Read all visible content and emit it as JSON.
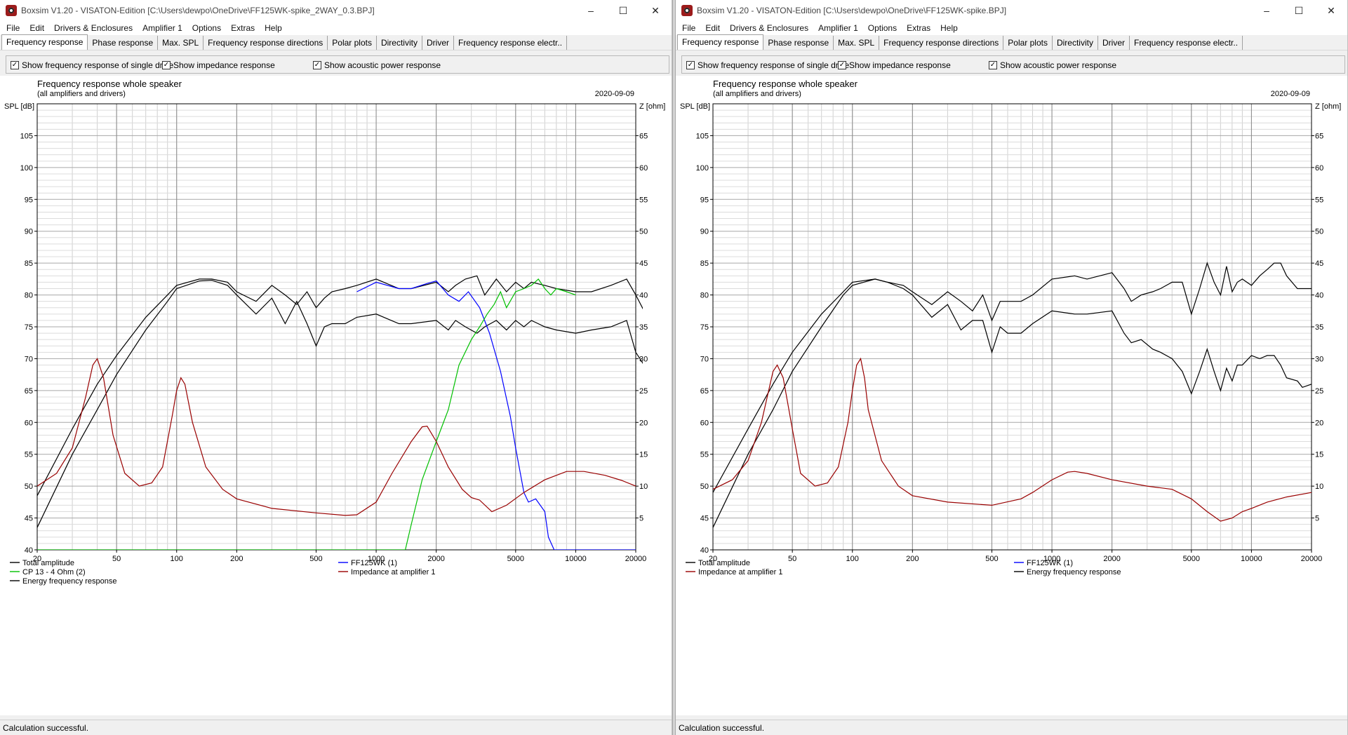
{
  "left": {
    "title": "Boxsim V1.20 - VISATON-Edition [C:\\Users\\dewpo\\OneDrive\\FF125WK-spike_2WAY_0.3.BPJ]",
    "menu": [
      "File",
      "Edit",
      "Drivers & Enclosures",
      "Amplifier 1",
      "Options",
      "Extras",
      "Help"
    ],
    "tabs": [
      "Frequency response",
      "Phase response",
      "Max. SPL",
      "Frequency response directions",
      "Polar plots",
      "Directivity",
      "Driver",
      "Frequency response electr.."
    ],
    "options": [
      "Show frequency response of single drive",
      "Show impedance response",
      "Show acoustic power response"
    ],
    "status": "Calculation successful.",
    "chart_data": {
      "type": "line",
      "title": "Frequency response whole speaker",
      "subtitle": "(all amplifiers and drivers)",
      "date": "2020-09-09",
      "ylabel": "SPL [dB]",
      "y2label": "Z [ohm]",
      "xscale": "log",
      "xlim": [
        20,
        20000
      ],
      "ylim": [
        40,
        110
      ],
      "y2lim": [
        0,
        70
      ],
      "xticks": [
        20,
        50,
        100,
        200,
        500,
        1000,
        2000,
        5000,
        10000,
        20000
      ],
      "xtick_labels": [
        "20",
        "50",
        "100",
        "200",
        "500",
        "1000",
        "2000",
        "5000",
        "10000",
        "20000"
      ],
      "yticks": [
        40,
        45,
        50,
        55,
        60,
        65,
        70,
        75,
        80,
        85,
        90,
        95,
        100,
        105
      ],
      "y2ticks": [
        5,
        10,
        15,
        20,
        25,
        30,
        35,
        40,
        45,
        50,
        55,
        60,
        65
      ],
      "legend": [
        {
          "label": "Total amplitude",
          "color": "#000000"
        },
        {
          "label": "FF125WK (1)",
          "color": "#0000ff"
        },
        {
          "label": "CP 13 - 4 Ohm (2)",
          "color": "#00c000"
        },
        {
          "label": "Impedance at amplifier 1",
          "color": "#990000"
        },
        {
          "label": "Energy frequency response",
          "color": "#000000"
        }
      ],
      "series": [
        {
          "name": "Total amplitude",
          "axis": "spl",
          "color": "#000000",
          "x": [
            20,
            30,
            40,
            50,
            70,
            90,
            100,
            130,
            150,
            180,
            200,
            250,
            300,
            350,
            400,
            450,
            500,
            550,
            600,
            700,
            800,
            1000,
            1300,
            1500,
            2000,
            2300,
            2500,
            2800,
            3200,
            3500,
            4000,
            4500,
            5000,
            5500,
            6000,
            7000,
            8000,
            10000,
            12000,
            15000,
            18000,
            20000,
            22000
          ],
          "y": [
            48.5,
            59,
            66,
            70.5,
            76.5,
            80,
            81.5,
            82.5,
            82.5,
            82,
            80.5,
            79,
            81.5,
            80,
            78.5,
            80.5,
            78,
            79.5,
            80.5,
            81,
            81.5,
            82.5,
            81,
            81,
            82,
            80.5,
            81.5,
            82.5,
            83,
            80,
            82.5,
            80.5,
            82,
            81,
            82,
            81.5,
            81,
            80.5,
            80.5,
            81.5,
            82.5,
            80,
            77.5
          ]
        },
        {
          "name": "Energy frequency response",
          "axis": "spl",
          "color": "#000000",
          "x": [
            20,
            30,
            40,
            50,
            70,
            90,
            100,
            130,
            150,
            180,
            200,
            250,
            300,
            350,
            400,
            450,
            500,
            550,
            600,
            700,
            800,
            1000,
            1300,
            1500,
            2000,
            2300,
            2500,
            2800,
            3200,
            3500,
            4000,
            4500,
            5000,
            5500,
            6000,
            7000,
            8000,
            10000,
            12000,
            15000,
            18000,
            20000,
            22000
          ],
          "y": [
            43.5,
            55,
            62,
            67.5,
            74.5,
            79,
            81,
            82.2,
            82.3,
            81.5,
            80,
            77,
            79.5,
            75.5,
            79,
            75.5,
            72,
            75,
            75.5,
            75.5,
            76.5,
            77,
            75.5,
            75.5,
            76,
            74.5,
            76,
            75,
            74,
            75,
            76,
            74.5,
            76,
            75,
            76,
            75,
            74.5,
            74,
            74.5,
            75,
            76,
            71,
            69
          ]
        },
        {
          "name": "FF125WK (1)",
          "axis": "spl",
          "color": "#0000ff",
          "x": [
            800,
            1000,
            1300,
            1500,
            1800,
            2000,
            2300,
            2600,
            2900,
            3300,
            3700,
            4200,
            4700,
            5000,
            5500,
            5800,
            6300,
            7000,
            7300,
            7800,
            10000,
            20000
          ],
          "y": [
            80.5,
            82,
            81,
            81,
            81.8,
            82.2,
            80,
            79,
            80.5,
            78,
            74,
            68,
            61,
            56,
            49,
            47.5,
            48,
            46,
            42,
            40,
            40,
            40
          ]
        },
        {
          "name": "CP 13 - 4 Ohm (2)",
          "axis": "spl",
          "color": "#00c000",
          "x": [
            20,
            100,
            500,
            1000,
            1400,
            1500,
            1700,
            2000,
            2300,
            2600,
            3000,
            3300,
            3600,
            3900,
            4200,
            4500,
            5000,
            5500,
            6000,
            6500,
            7000,
            7500,
            8000,
            9000,
            10000
          ],
          "y": [
            40,
            40,
            40,
            40,
            40,
            44,
            51,
            57,
            62,
            69,
            73,
            75,
            77,
            78.5,
            80.5,
            78,
            80.5,
            81,
            81.5,
            82.5,
            81,
            80,
            81,
            80.5,
            80
          ]
        },
        {
          "name": "Impedance at amplifier 1",
          "axis": "z",
          "color": "#990000",
          "x": [
            20,
            25,
            30,
            35,
            38,
            40,
            43,
            48,
            55,
            65,
            75,
            85,
            95,
            100,
            105,
            110,
            120,
            140,
            170,
            200,
            300,
            500,
            700,
            800,
            1000,
            1200,
            1500,
            1700,
            1800,
            2000,
            2300,
            2700,
            3000,
            3300,
            3800,
            4500,
            5500,
            7000,
            9000,
            11000,
            14000,
            17000,
            20000
          ],
          "y": [
            10,
            12,
            16,
            24,
            29,
            30,
            27,
            18,
            12,
            10,
            10.5,
            13,
            21,
            25,
            27,
            26,
            20,
            13,
            9.5,
            8,
            6.5,
            5.8,
            5.4,
            5.5,
            7.5,
            12,
            17,
            19.3,
            19.4,
            17,
            13,
            9.5,
            8.2,
            7.8,
            6,
            7,
            9,
            11,
            12.3,
            12.3,
            11.7,
            10.9,
            10
          ]
        }
      ]
    }
  },
  "right": {
    "title": "Boxsim V1.20 - VISATON-Edition [C:\\Users\\dewpo\\OneDrive\\FF125WK-spike.BPJ]",
    "menu": [
      "File",
      "Edit",
      "Drivers & Enclosures",
      "Amplifier 1",
      "Options",
      "Extras",
      "Help"
    ],
    "tabs": [
      "Frequency response",
      "Phase response",
      "Max. SPL",
      "Frequency response directions",
      "Polar plots",
      "Directivity",
      "Driver",
      "Frequency response electr.."
    ],
    "options": [
      "Show frequency response of single drive",
      "Show impedance response",
      "Show acoustic power response"
    ],
    "status": "Calculation successful.",
    "chart_data": {
      "type": "line",
      "title": "Frequency response whole speaker",
      "subtitle": "(all amplifiers and drivers)",
      "date": "2020-09-09",
      "ylabel": "SPL [dB]",
      "y2label": "Z [ohm]",
      "xscale": "log",
      "xlim": [
        20,
        20000
      ],
      "ylim": [
        40,
        110
      ],
      "y2lim": [
        0,
        70
      ],
      "xticks": [
        20,
        50,
        100,
        200,
        500,
        1000,
        2000,
        5000,
        10000,
        20000
      ],
      "xtick_labels": [
        "20",
        "50",
        "100",
        "200",
        "500",
        "1000",
        "2000",
        "5000",
        "10000",
        "20000"
      ],
      "yticks": [
        40,
        45,
        50,
        55,
        60,
        65,
        70,
        75,
        80,
        85,
        90,
        95,
        100,
        105
      ],
      "y2ticks": [
        5,
        10,
        15,
        20,
        25,
        30,
        35,
        40,
        45,
        50,
        55,
        60,
        65
      ],
      "legend": [
        {
          "label": "Total amplitude",
          "color": "#000000"
        },
        {
          "label": "FF125WK (1)",
          "color": "#0000ff"
        },
        {
          "label": "Impedance at amplifier 1",
          "color": "#990000"
        },
        {
          "label": "Energy frequency response",
          "color": "#000000"
        }
      ],
      "series": [
        {
          "name": "Total amplitude",
          "axis": "spl",
          "color": "#000000",
          "x": [
            20,
            30,
            40,
            50,
            70,
            90,
            100,
            130,
            150,
            180,
            200,
            250,
            300,
            350,
            400,
            450,
            500,
            550,
            600,
            700,
            800,
            1000,
            1300,
            1500,
            2000,
            2300,
            2500,
            2800,
            3200,
            3500,
            4000,
            4500,
            5000,
            5500,
            6000,
            6500,
            7000,
            7500,
            8000,
            8500,
            9000,
            10000,
            11000,
            12000,
            13000,
            14000,
            15000,
            17000,
            18000,
            20000
          ],
          "y": [
            49,
            59,
            66,
            71,
            77,
            80.5,
            82,
            82.5,
            82,
            81.5,
            80.5,
            78.5,
            80.5,
            79,
            77.5,
            80,
            76,
            79,
            79,
            79,
            80,
            82.5,
            83,
            82.5,
            83.5,
            81,
            79,
            80,
            80.5,
            81,
            82,
            82,
            77,
            81,
            85,
            82,
            80,
            84.5,
            80.5,
            82,
            82.5,
            81.5,
            83,
            84,
            85,
            85,
            83,
            81,
            81,
            81
          ]
        },
        {
          "name": "Energy frequency response",
          "axis": "spl",
          "color": "#000000",
          "x": [
            20,
            30,
            40,
            50,
            70,
            90,
            100,
            130,
            150,
            180,
            200,
            250,
            300,
            350,
            400,
            450,
            500,
            550,
            600,
            700,
            800,
            1000,
            1300,
            1500,
            2000,
            2300,
            2500,
            2800,
            3200,
            3500,
            4000,
            4500,
            5000,
            5500,
            6000,
            6500,
            7000,
            7500,
            8000,
            8500,
            9000,
            10000,
            11000,
            12000,
            13000,
            14000,
            15000,
            17000,
            18000,
            20000
          ],
          "y": [
            43.5,
            55,
            62,
            68,
            75,
            80,
            81.5,
            82.5,
            82,
            81,
            80,
            76.5,
            78.5,
            74.5,
            76,
            76,
            71,
            75,
            74,
            74,
            75.5,
            77.5,
            77,
            77,
            77.5,
            74,
            72.5,
            73,
            71.5,
            71,
            70,
            68,
            64.5,
            68,
            71.5,
            68,
            65,
            68.5,
            66.5,
            69,
            69,
            70.5,
            70,
            70.5,
            70.5,
            69,
            67,
            66.5,
            65.5,
            66
          ]
        },
        {
          "name": "Impedance at amplifier 1",
          "axis": "z",
          "color": "#990000",
          "x": [
            20,
            25,
            30,
            35,
            40,
            42,
            45,
            50,
            55,
            65,
            75,
            85,
            95,
            100,
            105,
            110,
            115,
            120,
            140,
            170,
            200,
            300,
            500,
            700,
            800,
            1000,
            1200,
            1300,
            1500,
            2000,
            3000,
            4000,
            5000,
            6000,
            7000,
            8000,
            9000,
            10000,
            12000,
            15000,
            20000
          ],
          "y": [
            9.5,
            11,
            14,
            20,
            28,
            29,
            27,
            19,
            12,
            10,
            10.5,
            13,
            20,
            25,
            29,
            30,
            27,
            22,
            14,
            10,
            8.5,
            7.5,
            7,
            8,
            9,
            11,
            12.2,
            12.3,
            12,
            11,
            10,
            9.5,
            8,
            6,
            4.5,
            5,
            6,
            6.5,
            7.5,
            8.3,
            9
          ]
        }
      ]
    }
  }
}
